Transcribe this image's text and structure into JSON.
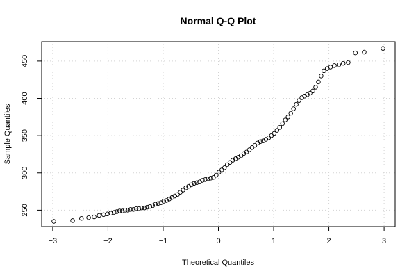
{
  "chart_data": {
    "type": "scatter",
    "title": "Normal Q-Q Plot",
    "xlabel": "Theoretical Quantiles",
    "ylabel": "Sample Quantiles",
    "xlim": [
      -3.2,
      3.2
    ],
    "ylim": [
      228,
      476
    ],
    "xticks": [
      -3,
      -2,
      -1,
      0,
      1,
      2,
      3
    ],
    "yticks": [
      250,
      300,
      350,
      400,
      450
    ],
    "grid": true,
    "point_color": "#000000",
    "x": [
      -2.98,
      -2.64,
      -2.48,
      -2.35,
      -2.25,
      -2.16,
      -2.08,
      -2.01,
      -1.95,
      -1.89,
      -1.84,
      -1.79,
      -1.74,
      -1.69,
      -1.64,
      -1.59,
      -1.54,
      -1.49,
      -1.44,
      -1.39,
      -1.34,
      -1.29,
      -1.24,
      -1.19,
      -1.14,
      -1.09,
      -1.04,
      -0.99,
      -0.94,
      -0.89,
      -0.84,
      -0.79,
      -0.74,
      -0.69,
      -0.64,
      -0.59,
      -0.54,
      -0.49,
      -0.44,
      -0.39,
      -0.34,
      -0.29,
      -0.24,
      -0.19,
      -0.14,
      -0.09,
      -0.04,
      0.01,
      0.06,
      0.11,
      0.16,
      0.21,
      0.26,
      0.31,
      0.36,
      0.41,
      0.46,
      0.51,
      0.56,
      0.61,
      0.66,
      0.71,
      0.76,
      0.81,
      0.86,
      0.91,
      0.96,
      1.01,
      1.06,
      1.11,
      1.16,
      1.21,
      1.26,
      1.31,
      1.36,
      1.41,
      1.46,
      1.51,
      1.56,
      1.61,
      1.66,
      1.71,
      1.76,
      1.81,
      1.86,
      1.91,
      1.97,
      2.03,
      2.1,
      2.18,
      2.26,
      2.35,
      2.48,
      2.64,
      2.98
    ],
    "y": [
      235,
      236,
      239,
      240,
      241,
      243,
      244,
      245,
      246,
      247,
      248,
      249,
      249,
      250,
      250,
      251,
      251,
      252,
      252,
      253,
      253,
      254,
      255,
      256,
      258,
      259,
      260,
      262,
      263,
      265,
      267,
      269,
      271,
      274,
      277,
      280,
      282,
      284,
      286,
      287,
      288,
      290,
      291,
      292,
      293,
      294,
      297,
      301,
      304,
      307,
      311,
      314,
      317,
      319,
      321,
      323,
      326,
      328,
      331,
      334,
      337,
      340,
      342,
      343,
      345,
      347,
      350,
      353,
      357,
      361,
      366,
      371,
      375,
      380,
      386,
      392,
      397,
      401,
      403,
      405,
      407,
      410,
      415,
      422,
      430,
      437,
      440,
      442,
      444,
      445,
      447,
      448,
      461,
      462,
      467
    ]
  }
}
